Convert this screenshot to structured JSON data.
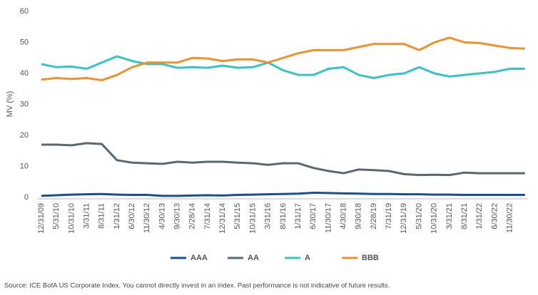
{
  "chart_data": {
    "type": "line",
    "y_label": "MV (%)",
    "source": "Source: ICE BofA US Corporate Index. You cannot directly invest in an index. Past performance is not indicative of future results.",
    "categories": [
      "12/31/09",
      "5/31/10",
      "10/31/10",
      "3/31/11",
      "8/31/11",
      "1/31/12",
      "6/30/12",
      "11/30/12",
      "4/30/13",
      "9/30/13",
      "2/28/14",
      "7/31/14",
      "12/31/14",
      "5/31/15",
      "10/31/15",
      "3/31/16",
      "8/31/16",
      "1/31/17",
      "6/30/17",
      "11/30/17",
      "4/30/18",
      "9/30/18",
      "2/28/19",
      "7/31/19",
      "12/31/19",
      "5/31/20",
      "10/31/20",
      "3/31/21",
      "8/31/21",
      "1/31/22",
      "6/30/22",
      "11/30/22",
      null
    ],
    "ylim": [
      0,
      60
    ],
    "yticks": [
      0,
      10,
      20,
      30,
      40,
      50,
      60
    ],
    "grid": false,
    "legend": "bottom",
    "series": [
      {
        "name": "AAA",
        "color": "#1b4f8f",
        "values": [
          0.5,
          0.7,
          0.9,
          1,
          1.1,
          0.9,
          0.8,
          0.8,
          0.5,
          0.5,
          0.6,
          0.7,
          0.6,
          0.8,
          0.9,
          1,
          1.1,
          1.2,
          1.5,
          1.4,
          1.3,
          1.2,
          1.1,
          1.1,
          1,
          1,
          0.9,
          0.9,
          0.8,
          0.8,
          0.8,
          0.8,
          0.8
        ]
      },
      {
        "name": "AA",
        "color": "#5c6870",
        "values": [
          17,
          17,
          16.8,
          17.5,
          17.2,
          12,
          11.2,
          11,
          10.8,
          11.5,
          11.2,
          11.5,
          11.5,
          11.2,
          11,
          10.5,
          11,
          11,
          9.5,
          8.5,
          7.8,
          9,
          8.8,
          8.5,
          7.5,
          7.2,
          7.3,
          7.2,
          8,
          7.8,
          7.8,
          7.8,
          7.8
        ]
      },
      {
        "name": "A",
        "color": "#35c5c8",
        "values": [
          43,
          42,
          42.2,
          41.5,
          43.5,
          45.5,
          44,
          43,
          43,
          41.8,
          42,
          41.8,
          42.5,
          41.8,
          42,
          43.5,
          41,
          39.5,
          39.5,
          41.5,
          42,
          39.5,
          38.5,
          39.5,
          40,
          42,
          40,
          39,
          39.5,
          40,
          40.5,
          41.5,
          41.5
        ]
      },
      {
        "name": "BBB",
        "color": "#f0912e",
        "values": [
          38,
          38.5,
          38.2,
          38.5,
          37.8,
          39.5,
          42,
          43.5,
          43.5,
          43.5,
          45,
          44.8,
          44,
          44.5,
          44.5,
          43.5,
          45,
          46.5,
          47.5,
          47.5,
          47.5,
          48.5,
          49.5,
          49.5,
          49.5,
          47.5,
          50,
          51.5,
          50,
          49.8,
          49,
          48.2,
          48
        ]
      }
    ]
  }
}
